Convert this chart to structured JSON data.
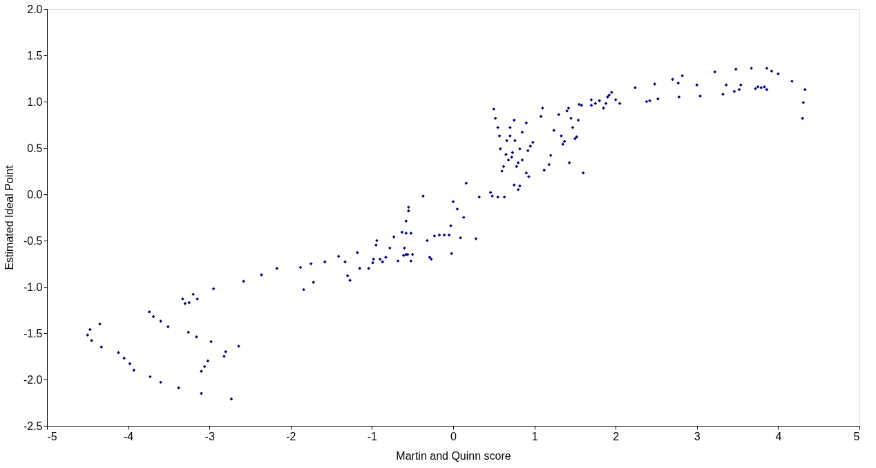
{
  "chart_data": {
    "type": "scatter",
    "xlabel": "Martin and Quinn score",
    "ylabel": "Estimated Ideal Point",
    "xlim": [
      -5,
      5
    ],
    "xticks": [
      -5,
      -4,
      -3,
      -2,
      -1,
      0,
      1,
      2,
      3,
      4,
      5
    ],
    "ylim": [
      -2.5,
      2.0
    ],
    "yticks": [
      {
        "value": -2.5,
        "label": "-2.5"
      },
      {
        "value": -2,
        "label": "-2.0"
      },
      {
        "value": -1.5,
        "label": "-1.5"
      },
      {
        "value": -1,
        "label": "-1.0"
      },
      {
        "value": -0.5,
        "label": "-0.5"
      },
      {
        "value": 0,
        "label": "0.0"
      },
      {
        "value": 0.5,
        "label": "0.5"
      },
      {
        "value": 1,
        "label": "1.0"
      },
      {
        "value": 1.5,
        "label": "1.5"
      },
      {
        "value": 2,
        "label": "2.0"
      }
    ],
    "grid": false,
    "marker": "diamond",
    "series": [
      {
        "color": "#000080",
        "x": [
          -4.5,
          -4.47,
          -4.45,
          -4.35,
          -4.33,
          -4.12,
          -4.05,
          -3.98,
          -3.93,
          -3.73,
          -3.6,
          -3.38,
          -3.1,
          -2.73,
          -3.74,
          -3.69,
          -3.6,
          -3.51,
          -3.33,
          -3.3,
          -3.25,
          -3.2,
          -3.15,
          -2.95,
          -3.26,
          -3.16,
          -2.98,
          -2.64,
          -2.8,
          -2.82,
          -3.02,
          -3.06,
          -3.1,
          -2.58,
          -2.36,
          -2.17,
          -1.88,
          -1.84,
          -1.75,
          -1.72,
          -1.58,
          -1.41,
          -1.33,
          -1.3,
          -1.27,
          -1.15,
          -1.18,
          -1.04,
          -0.99,
          -0.98,
          -0.95,
          -0.94,
          -0.87,
          -0.78,
          -0.73,
          -0.68,
          -0.56,
          -0.83,
          -0.9,
          -0.63,
          -0.58,
          -0.58,
          -0.55,
          -0.55,
          -0.6,
          -0.61,
          -0.58,
          -0.52,
          -0.5,
          -0.52,
          -0.37,
          -0.32,
          -0.29,
          -0.27,
          -0.23,
          -0.17,
          -0.11,
          -0.05,
          -0.03,
          -0.02,
          0,
          0.05,
          0.09,
          0.13,
          0.16,
          0.28,
          0.32,
          0.46,
          0.48,
          0.55,
          0.63,
          0.5,
          0.52,
          0.55,
          0.57,
          0.58,
          0.6,
          0.62,
          0.66,
          0.7,
          0.72,
          0.75,
          0.73,
          0.76,
          0.78,
          0.8,
          0.82,
          0.85,
          0.9,
          0.92,
          0.95,
          0.98,
          0.93,
          0.9,
          0.75,
          0.8,
          0.82,
          0.65,
          0.68,
          0.7,
          0.85,
          1.1,
          1.08,
          1.12,
          1.18,
          1.2,
          1.24,
          1.3,
          1.33,
          1.35,
          1.37,
          1.4,
          1.42,
          1.43,
          1.45,
          1.47,
          1.5,
          1.52,
          1.54,
          1.55,
          1.58,
          1.6,
          1.7,
          1.7,
          1.75,
          1.8,
          1.85,
          1.88,
          1.9,
          1.92,
          1.95,
          2.0,
          2.05,
          2.24,
          2.38,
          2.42,
          2.48,
          2.52,
          2.7,
          2.77,
          2.78,
          2.82,
          3.0,
          3.04,
          3.22,
          3.32,
          3.36,
          3.46,
          3.48,
          3.52,
          3.54,
          3.67,
          3.72,
          3.75,
          3.79,
          3.83,
          3.86,
          3.86,
          3.92,
          4.0,
          4.17,
          4.3,
          4.31,
          4.33
        ],
        "values": [
          -1.52,
          -1.46,
          -1.58,
          -1.4,
          -1.65,
          -1.71,
          -1.77,
          -1.83,
          -1.9,
          -1.97,
          -2.03,
          -2.09,
          -2.15,
          -2.21,
          -1.27,
          -1.32,
          -1.37,
          -1.43,
          -1.13,
          -1.18,
          -1.17,
          -1.08,
          -1.13,
          -1.02,
          -1.49,
          -1.54,
          -1.59,
          -1.64,
          -1.7,
          -1.75,
          -1.8,
          -1.86,
          -1.91,
          -0.94,
          -0.87,
          -0.8,
          -0.79,
          -1.03,
          -0.75,
          -0.95,
          -0.73,
          -0.67,
          -0.73,
          -0.88,
          -0.93,
          -0.8,
          -0.63,
          -0.8,
          -0.74,
          -0.7,
          -0.55,
          -0.5,
          -0.73,
          -0.58,
          -0.46,
          -0.72,
          -0.65,
          -0.68,
          -0.7,
          -0.41,
          -0.42,
          -0.29,
          -0.18,
          -0.14,
          -0.58,
          -0.66,
          -0.65,
          -0.72,
          -0.65,
          -0.42,
          -0.02,
          -0.5,
          -0.68,
          -0.7,
          -0.45,
          -0.44,
          -0.44,
          -0.44,
          -0.34,
          -0.64,
          -0.08,
          -0.16,
          -0.47,
          -0.25,
          0.12,
          -0.48,
          -0.03,
          0.02,
          -0.02,
          -0.03,
          -0.03,
          0.92,
          0.82,
          0.72,
          0.63,
          0.49,
          0.25,
          0.3,
          0.58,
          0.72,
          0.4,
          0.8,
          0.45,
          0.58,
          0.3,
          0.34,
          0.49,
          0.37,
          0.77,
          0.47,
          0.52,
          0.56,
          0.19,
          0.23,
          0.1,
          0.05,
          0.09,
          0.43,
          0.37,
          0.63,
          0.67,
          0.93,
          0.84,
          0.26,
          0.32,
          0.42,
          0.69,
          0.86,
          0.63,
          0.54,
          0.57,
          0.9,
          0.93,
          0.34,
          0.82,
          0.72,
          0.6,
          0.62,
          0.8,
          0.97,
          0.96,
          0.23,
          0.96,
          1.02,
          0.98,
          1.01,
          0.93,
          0.98,
          1.05,
          1.07,
          1.1,
          1.02,
          0.98,
          1.15,
          1.0,
          1.01,
          1.19,
          1.03,
          1.24,
          1.2,
          1.05,
          1.28,
          1.18,
          1.06,
          1.32,
          1.08,
          1.18,
          1.11,
          1.35,
          1.13,
          1.18,
          1.36,
          1.14,
          1.16,
          1.15,
          1.16,
          1.13,
          1.36,
          1.33,
          1.3,
          1.22,
          0.82,
          0.99,
          1.13
        ]
      }
    ]
  }
}
